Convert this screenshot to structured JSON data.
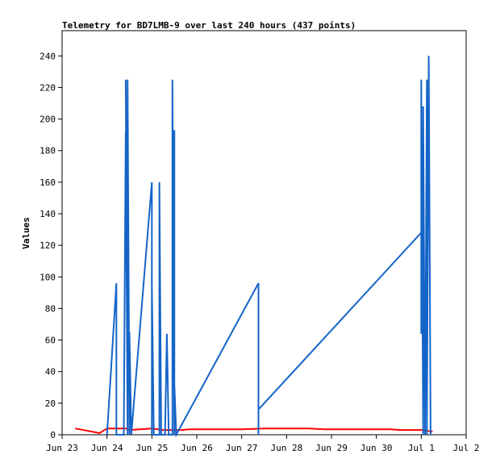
{
  "chart_data": {
    "type": "line",
    "title": "Telemetry for BD7LMB-9 over last 240 hours (437 points)",
    "xlabel": "",
    "ylabel": "Values",
    "xlim": [
      "2025-06-23",
      "2025-07-02"
    ],
    "ylim": [
      0,
      256
    ],
    "x_ticks": [
      {
        "x": "2025-06-23",
        "label": "Jun 23"
      },
      {
        "x": "2025-06-24",
        "label": "Jun 24"
      },
      {
        "x": "2025-06-25",
        "label": "Jun 25"
      },
      {
        "x": "2025-06-26",
        "label": "Jun 26"
      },
      {
        "x": "2025-06-27",
        "label": "Jun 27"
      },
      {
        "x": "2025-06-28",
        "label": "Jun 28"
      },
      {
        "x": "2025-06-29",
        "label": "Jun 29"
      },
      {
        "x": "2025-06-30",
        "label": "Jun 30"
      },
      {
        "x": "2025-07-01",
        "label": "Jul 1"
      },
      {
        "x": "2025-07-02",
        "label": "Jul 2"
      }
    ],
    "y_ticks": [
      0,
      20,
      40,
      60,
      80,
      100,
      120,
      140,
      160,
      180,
      200,
      220,
      240
    ],
    "grid": false,
    "legend": "none",
    "series": [
      {
        "color": "#ff0000",
        "points": [
          [
            "2025-06-23 07:00",
            4
          ],
          [
            "2025-06-23 20:00",
            1
          ],
          [
            "2025-06-24 00:00",
            4
          ],
          [
            "2025-06-24 10:00",
            4
          ],
          [
            "2025-06-24 12:00",
            3
          ],
          [
            "2025-06-25 00:00",
            4
          ],
          [
            "2025-06-25 06:00",
            3
          ],
          [
            "2025-06-25 16:00",
            3
          ],
          [
            "2025-06-25 20:00",
            3.5
          ],
          [
            "2025-06-27 00:00",
            3.5
          ],
          [
            "2025-06-27 12:00",
            4
          ],
          [
            "2025-06-28 12:00",
            4
          ],
          [
            "2025-06-28 20:00",
            3.5
          ],
          [
            "2025-06-30 08:00",
            3.5
          ],
          [
            "2025-06-30 12:00",
            3
          ],
          [
            "2025-07-01 00:00",
            3
          ],
          [
            "2025-07-01 06:00",
            2
          ]
        ]
      },
      {
        "color": "#1464c8",
        "points": [
          [
            "2025-06-24 00:00",
            0
          ],
          [
            "2025-06-24 05:00",
            96
          ],
          [
            "2025-06-24 05:00",
            0
          ],
          [
            "2025-06-24 09:00",
            0
          ],
          [
            "2025-06-24 10:00",
            192
          ],
          [
            "2025-06-24 11:00",
            0
          ],
          [
            "2025-06-24 10:00",
            225
          ],
          [
            "2025-06-24 11:00",
            0
          ],
          [
            "2025-06-24 11:00",
            225
          ],
          [
            "2025-06-24 12:00",
            0
          ],
          [
            "2025-06-24 12:00",
            65
          ],
          [
            "2025-06-24 13:00",
            0
          ],
          [
            "2025-06-25 00:00",
            160
          ],
          [
            "2025-06-25 00:00",
            0
          ],
          [
            "2025-06-25 00:00",
            96
          ],
          [
            "2025-06-25 01:00",
            0
          ],
          [
            "2025-06-25 04:00",
            0
          ],
          [
            "2025-06-25 04:00",
            160
          ],
          [
            "2025-06-25 05:00",
            0
          ],
          [
            "2025-06-25 07:00",
            0
          ],
          [
            "2025-06-25 08:00",
            64
          ],
          [
            "2025-06-25 09:00",
            0
          ],
          [
            "2025-06-25 11:00",
            0
          ],
          [
            "2025-06-25 11:00",
            225
          ],
          [
            "2025-06-25 12:00",
            0
          ],
          [
            "2025-06-25 12:00",
            193
          ],
          [
            "2025-06-25 12:00",
            0
          ],
          [
            "2025-06-25 12:00",
            32
          ],
          [
            "2025-06-25 13:00",
            0
          ],
          [
            "2025-06-27 09:00",
            96
          ],
          [
            "2025-06-27 09:00",
            0
          ],
          [
            "2025-06-27 09:00",
            16
          ],
          [
            "2025-07-01 00:00",
            128
          ],
          [
            "2025-07-01 00:00",
            64
          ],
          [
            "2025-07-01 00:00",
            225
          ],
          [
            "2025-07-01 01:00",
            0
          ],
          [
            "2025-07-01 01:00",
            208
          ],
          [
            "2025-07-01 02:00",
            0
          ],
          [
            "2025-07-01 02:00",
            96
          ],
          [
            "2025-07-01 02:00",
            0
          ],
          [
            "2025-07-01 03:00",
            225
          ],
          [
            "2025-07-01 03:00",
            0
          ],
          [
            "2025-07-01 04:00",
            240
          ],
          [
            "2025-07-01 05:00",
            0
          ]
        ]
      }
    ]
  }
}
